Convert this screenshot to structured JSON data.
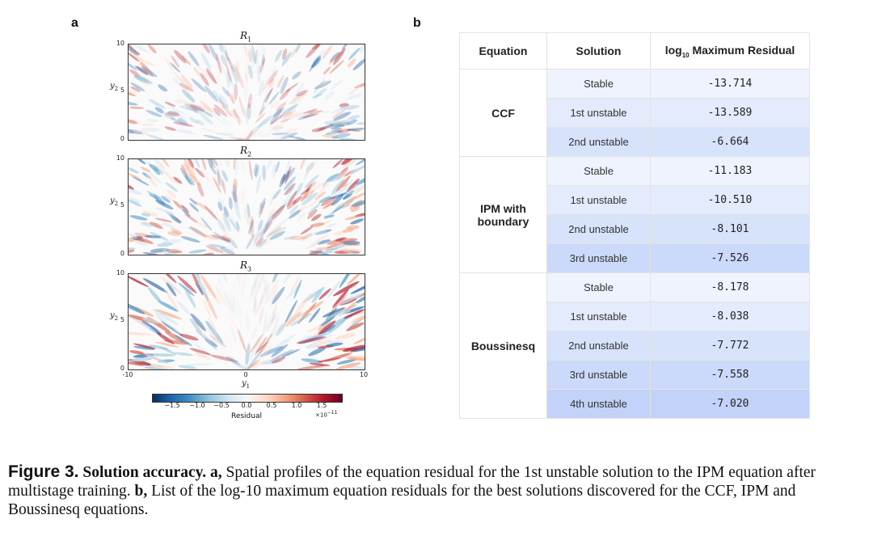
{
  "panel_a": {
    "letter": "a",
    "plots": [
      {
        "title_base": "R",
        "title_sub": "1",
        "y_label_base": "y",
        "y_label_sub": "2",
        "y_ticks": [
          "10",
          "5",
          "0"
        ]
      },
      {
        "title_base": "R",
        "title_sub": "2",
        "y_label_base": "y",
        "y_label_sub": "2",
        "y_ticks": [
          "10",
          "5",
          "0"
        ]
      },
      {
        "title_base": "R",
        "title_sub": "3",
        "y_label_base": "y",
        "y_label_sub": "2",
        "y_ticks": [
          "10",
          "5",
          "0"
        ]
      }
    ],
    "x_ticks": [
      "-10",
      "0",
      "10"
    ],
    "x_label_base": "y",
    "x_label_sub": "1",
    "colorbar": {
      "ticks": [
        "−1.5",
        "−1.0",
        "−0.5",
        "0.0",
        "0.5",
        "1.0",
        "1.5"
      ],
      "label": "Residual",
      "exponent_base": "×10",
      "exponent_power": "−11",
      "colors": [
        "#053061",
        "#2166ac",
        "#4393c3",
        "#92c5de",
        "#d1e5f0",
        "#f7f7f7",
        "#fddbc7",
        "#f4a582",
        "#d6604d",
        "#b2182b",
        "#67001f"
      ]
    }
  },
  "panel_b": {
    "letter": "b",
    "headers": {
      "equation": "Equation",
      "solution": "Solution",
      "residual_pre": "log",
      "residual_sub": "10",
      "residual_post": " Maximum Residual"
    },
    "row_colors": [
      "#eef3fd",
      "#e3ebfc",
      "#d7e2fb",
      "#cbd9fa",
      "#c2d2f8"
    ],
    "groups": [
      {
        "equation": "CCF",
        "rows": [
          {
            "solution": "Stable",
            "value": "-13.714"
          },
          {
            "solution": "1st unstable",
            "value": "-13.589"
          },
          {
            "solution": "2nd unstable",
            "value": "-6.664"
          }
        ]
      },
      {
        "equation": "IPM with boundary",
        "rows": [
          {
            "solution": "Stable",
            "value": "-11.183"
          },
          {
            "solution": "1st unstable",
            "value": "-10.510"
          },
          {
            "solution": "2nd unstable",
            "value": "-8.101"
          },
          {
            "solution": "3rd unstable",
            "value": "-7.526"
          }
        ]
      },
      {
        "equation": "Boussinesq",
        "rows": [
          {
            "solution": "Stable",
            "value": "-8.178"
          },
          {
            "solution": "1st unstable",
            "value": "-8.038"
          },
          {
            "solution": "2nd unstable",
            "value": "-7.772"
          },
          {
            "solution": "3rd unstable",
            "value": "-7.558"
          },
          {
            "solution": "4th unstable",
            "value": "-7.020"
          }
        ]
      }
    ]
  },
  "caption": {
    "figure_label": "Figure 3.",
    "title": "Solution accuracy.",
    "a_label": "a,",
    "a_text": "Spatial profiles of the equation residual for the 1st unstable solution to the IPM equation after multistage training.",
    "b_label": "b,",
    "b_text": "List of the log-10 maximum equation residuals for the best solutions discovered for the CCF, IPM and Boussinesq equations."
  }
}
